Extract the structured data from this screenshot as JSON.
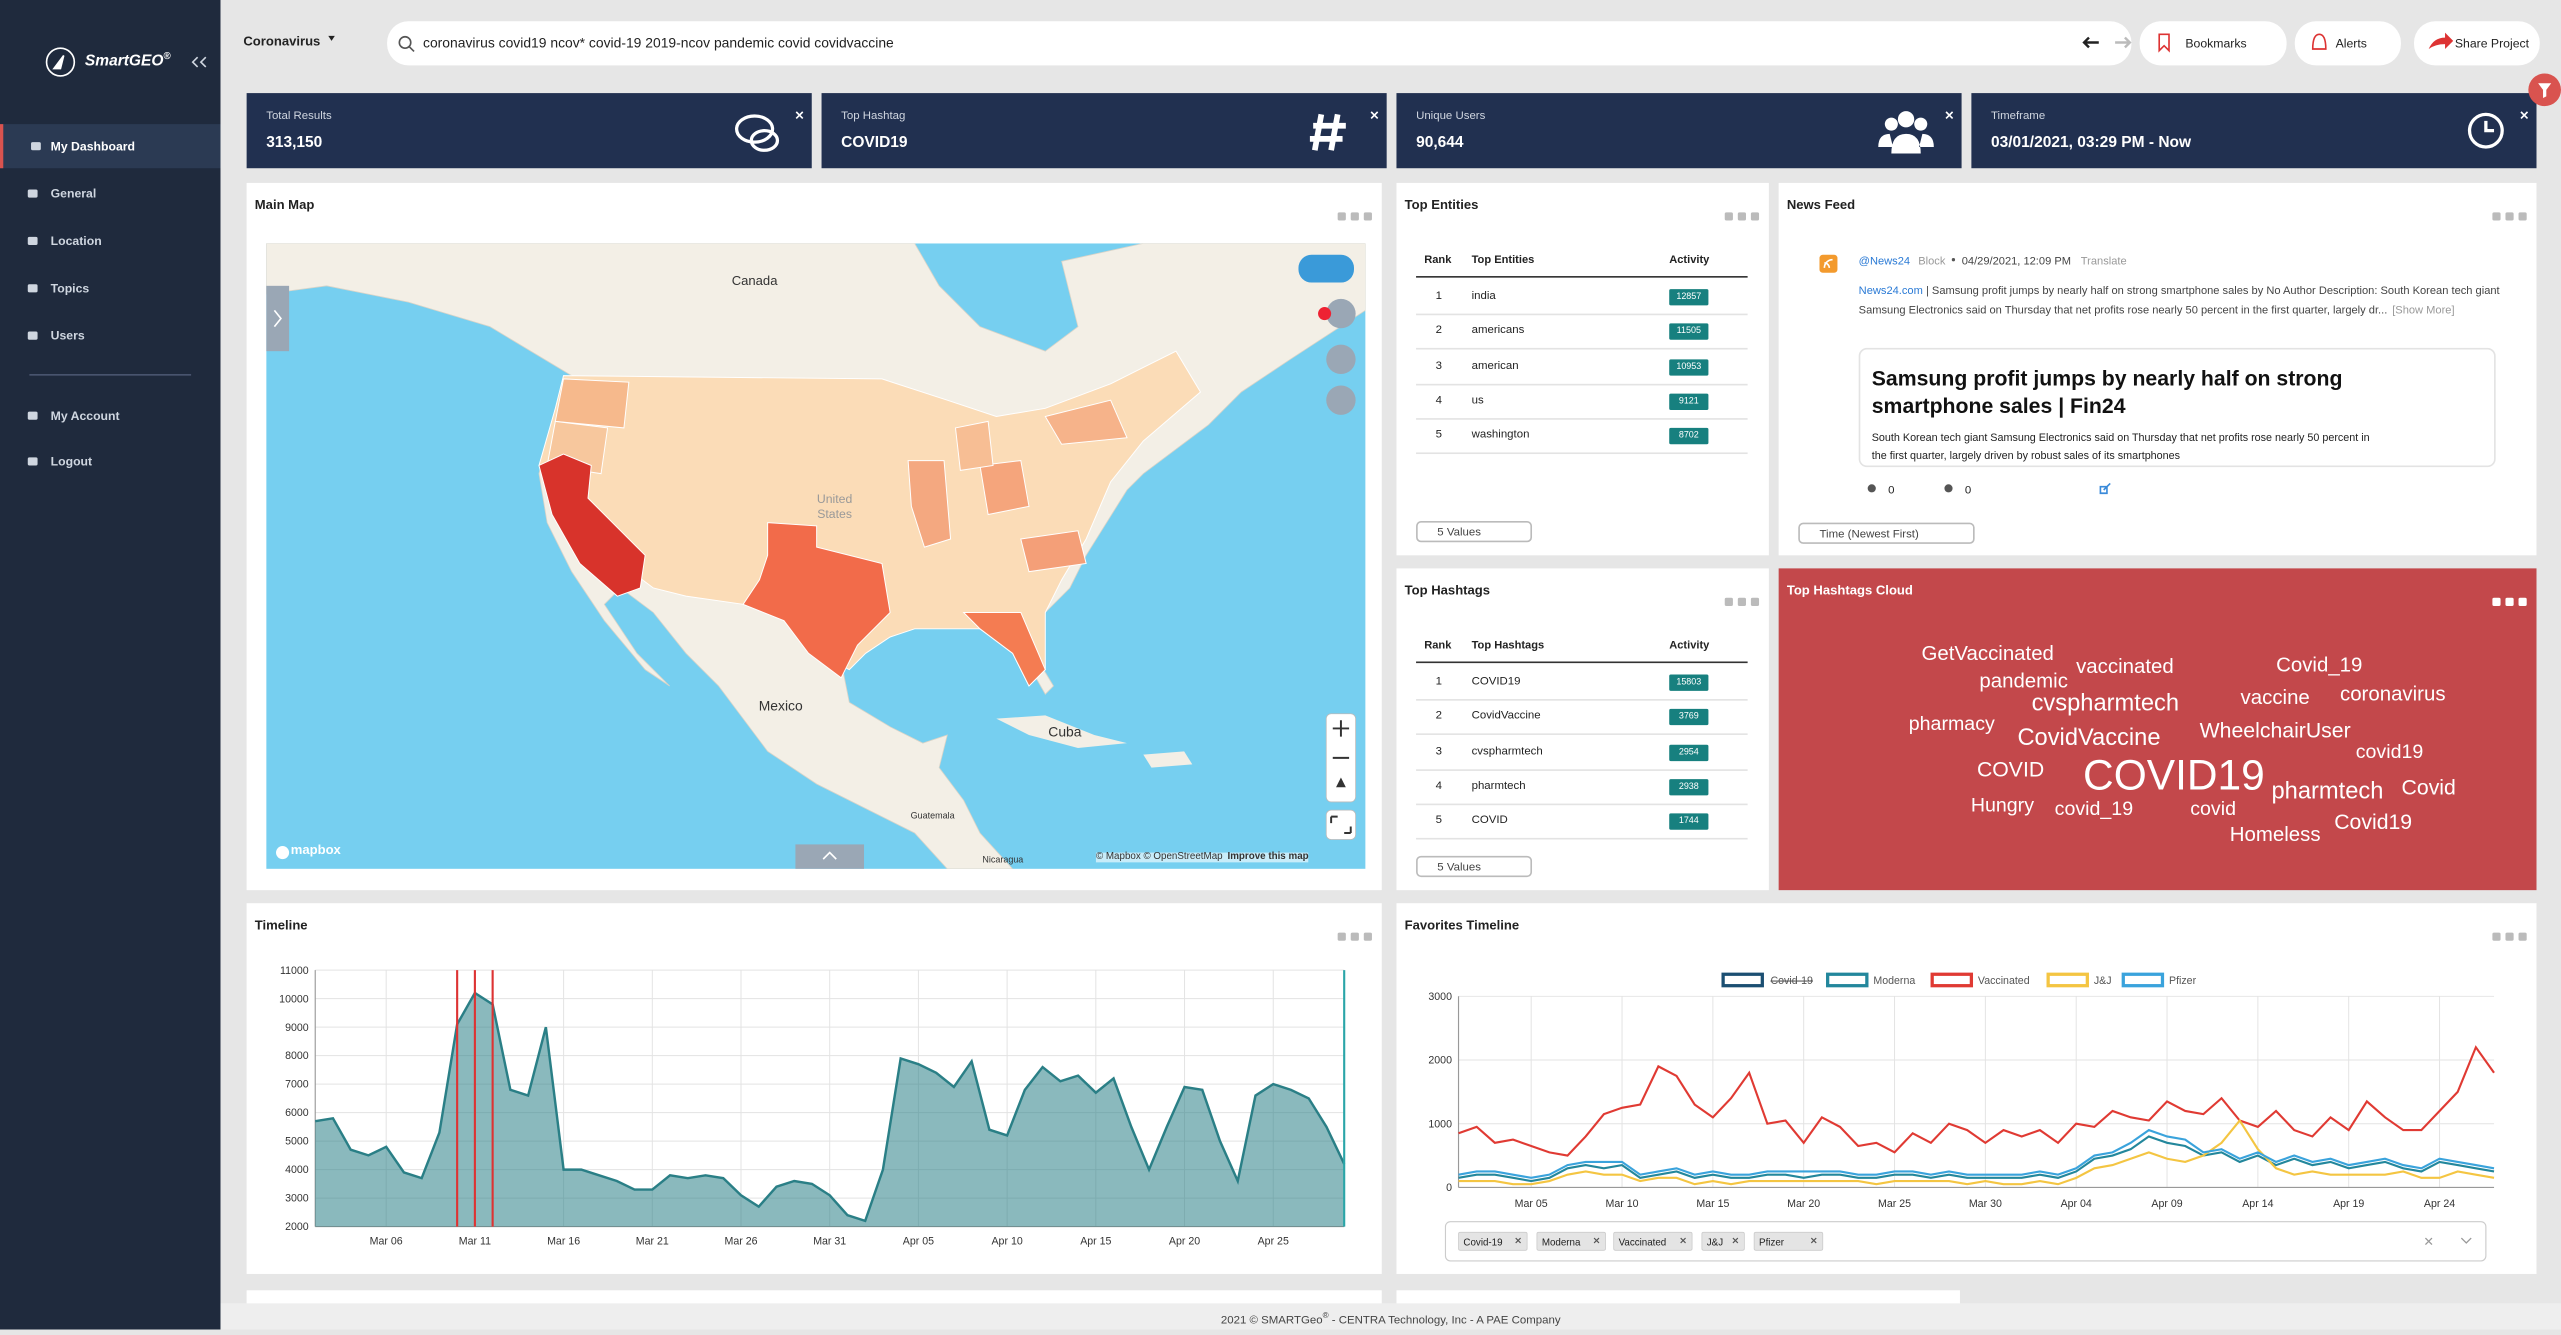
{
  "sidebar": {
    "brand": "SmartGEO",
    "brand_mark": "®",
    "menu": [
      "My Dashboard",
      "General",
      "Location",
      "Topics",
      "Users"
    ],
    "account_menu": [
      "My Account",
      "Logout"
    ]
  },
  "topbar": {
    "project": "Coronavirus",
    "search": "coronavirus covid19 ncov* covid-19 2019-ncov pandemic covid covidvaccine",
    "bookmarks": "Bookmarks",
    "alerts": "Alerts",
    "share": "Share Project"
  },
  "stats": [
    {
      "label": "Total Results",
      "value": "313,150"
    },
    {
      "label": "Top Hashtag",
      "value": "COVID19"
    },
    {
      "label": "Unique Users",
      "value": "90,644"
    },
    {
      "label": "Timeframe",
      "value": "03/01/2021, 03:29 PM - Now"
    }
  ],
  "map": {
    "title": "Main Map",
    "places": [
      "Canada",
      "United States",
      "Mexico",
      "Cuba",
      "Guatemala",
      "Nicaragua"
    ],
    "attribution": "© Mapbox © OpenStreetMap",
    "improve": "Improve this map",
    "logo": "mapbox"
  },
  "top_entities": {
    "title": "Top Entities",
    "columns": [
      "Rank",
      "Top Entities",
      "Activity"
    ],
    "rows": [
      [
        1,
        "india",
        12857
      ],
      [
        2,
        "americans",
        11505
      ],
      [
        3,
        "american",
        10953
      ],
      [
        4,
        "us",
        9121
      ],
      [
        5,
        "washington",
        8702
      ]
    ],
    "select": "5 Values"
  },
  "top_hashtags": {
    "title": "Top Hashtags",
    "columns": [
      "Rank",
      "Top Hashtags",
      "Activity"
    ],
    "rows": [
      [
        1,
        "COVID19",
        15803
      ],
      [
        2,
        "CovidVaccine",
        3769
      ],
      [
        3,
        "cvspharmtech",
        2954
      ],
      [
        4,
        "pharmtech",
        2938
      ],
      [
        5,
        "COVID",
        1744
      ]
    ],
    "select": "5 Values"
  },
  "news_feed": {
    "title": "News Feed",
    "source": "@News24",
    "block": "Block",
    "date": "04/29/2021, 12:09 PM",
    "translate": "Translate",
    "link": "News24.com",
    "summary": " | Samsung profit jumps by nearly half on strong smartphone sales by No Author Description: South Korean tech giant Samsung Electronics said on Thursday that net profits rose nearly 50 percent in the first quarter, largely dr...",
    "more": "[Show More]",
    "card_title": "Samsung profit jumps by nearly half on strong smartphone sales | Fin24",
    "card_text": "South Korean tech giant Samsung Electronics said on Thursday that net profits rose nearly 50 percent in the first quarter, largely driven by robust sales of its smartphones",
    "likes": 0,
    "users": 0,
    "sort": "Time (Newest First)"
  },
  "hashtag_cloud": {
    "title": "Top Hashtags Cloud",
    "words": [
      "GetVaccinated",
      "vaccinated",
      "Covid_19",
      "pandemic",
      "vaccine",
      "coronavirus",
      "cvspharmtech",
      "pharmacy",
      "WheelchairUser",
      "CovidVaccine",
      "covid19",
      "COVID",
      "COVID19",
      "pharmtech",
      "Covid",
      "Hungry",
      "covid_19",
      "covid",
      "Covid19",
      "Homeless"
    ]
  },
  "chart_data": [
    {
      "type": "area",
      "title": "Timeline",
      "color": "#2a7f86",
      "categories": [
        null,
        null,
        null,
        null,
        "Mar 06",
        null,
        null,
        null,
        null,
        "Mar 11",
        null,
        null,
        null,
        null,
        "Mar 16",
        null,
        null,
        null,
        null,
        "Mar 21",
        null,
        null,
        null,
        null,
        "Mar 26",
        null,
        null,
        null,
        null,
        "Mar 31",
        null,
        null,
        null,
        null,
        "Apr 05",
        null,
        null,
        null,
        null,
        "Apr 10",
        null,
        null,
        null,
        null,
        "Apr 15",
        null,
        null,
        null,
        null,
        "Apr 20",
        null,
        null,
        null,
        null,
        "Apr 25",
        null,
        null,
        null,
        null
      ],
      "values": [
        5700,
        5800,
        4700,
        4500,
        4800,
        3900,
        3700,
        5300,
        9100,
        10200,
        9800,
        6800,
        6600,
        9000,
        4000,
        4000,
        3800,
        3600,
        3300,
        3300,
        3800,
        3700,
        3800,
        3700,
        3100,
        2700,
        3400,
        3600,
        3500,
        3100,
        2400,
        2200,
        4000,
        7900,
        7700,
        7400,
        6900,
        7800,
        5400,
        5200,
        6800,
        7600,
        7100,
        7300,
        6700,
        7200,
        5500,
        4000,
        5500,
        6900,
        6800,
        5000,
        3600,
        6600,
        7000,
        6800,
        6500,
        5500,
        4200
      ],
      "ylim": [
        2000,
        11000
      ],
      "yticks": [
        2000,
        3000,
        4000,
        5000,
        6000,
        7000,
        8000,
        9000,
        10000,
        11000
      ],
      "grid": true
    },
    {
      "type": "line",
      "title": "Favorites Timeline",
      "legend": "top",
      "categories": [
        null,
        null,
        null,
        null,
        "Mar 05",
        null,
        null,
        null,
        null,
        "Mar 10",
        null,
        null,
        null,
        null,
        "Mar 15",
        null,
        null,
        null,
        null,
        "Mar 20",
        null,
        null,
        null,
        null,
        "Mar 25",
        null,
        null,
        null,
        null,
        "Mar 30",
        null,
        null,
        null,
        null,
        "Apr 04",
        null,
        null,
        null,
        null,
        "Apr 09",
        null,
        null,
        null,
        null,
        "Apr 14",
        null,
        null,
        null,
        null,
        "Apr 19",
        null,
        null,
        null,
        null,
        "Apr 24",
        null,
        null,
        null
      ],
      "series": [
        {
          "name": "Covid-19",
          "color": "#1b4f72",
          "hidden": true
        },
        {
          "name": "Moderna",
          "color": "#23879c",
          "values": [
            150,
            200,
            200,
            150,
            100,
            150,
            300,
            350,
            300,
            350,
            150,
            200,
            250,
            150,
            200,
            150,
            150,
            200,
            200,
            150,
            200,
            200,
            150,
            150,
            200,
            200,
            150,
            200,
            150,
            150,
            150,
            150,
            200,
            150,
            250,
            450,
            500,
            600,
            800,
            700,
            650,
            500,
            550,
            400,
            500,
            350,
            450,
            350,
            400,
            300,
            350,
            400,
            300,
            250,
            400,
            350,
            300,
            250
          ]
        },
        {
          "name": "Vaccinated",
          "color": "#e03a33",
          "values": [
            850,
            950,
            700,
            750,
            650,
            550,
            500,
            800,
            1150,
            1250,
            1300,
            1900,
            1750,
            1300,
            1100,
            1400,
            1800,
            1000,
            1050,
            700,
            1100,
            950,
            650,
            700,
            550,
            850,
            700,
            1000,
            900,
            700,
            900,
            800,
            900,
            700,
            1000,
            950,
            1200,
            1100,
            1050,
            1350,
            1200,
            1150,
            1400,
            1050,
            950,
            1200,
            900,
            800,
            1100,
            900,
            1350,
            1100,
            900,
            900,
            1200,
            1500,
            2200,
            1800
          ]
        },
        {
          "name": "J&J",
          "color": "#f4c542",
          "values": [
            100,
            100,
            100,
            50,
            50,
            100,
            200,
            250,
            200,
            200,
            100,
            150,
            150,
            50,
            100,
            50,
            100,
            100,
            100,
            100,
            100,
            100,
            100,
            50,
            100,
            100,
            100,
            100,
            50,
            100,
            50,
            50,
            100,
            50,
            150,
            300,
            350,
            450,
            550,
            450,
            400,
            500,
            700,
            1050,
            600,
            300,
            200,
            250,
            200,
            200,
            200,
            200,
            250,
            150,
            150,
            250,
            200,
            150
          ]
        },
        {
          "name": "Pfizer",
          "color": "#3aa3dc",
          "values": [
            200,
            250,
            250,
            200,
            150,
            200,
            350,
            400,
            400,
            400,
            200,
            250,
            300,
            200,
            250,
            200,
            200,
            250,
            250,
            250,
            250,
            250,
            200,
            200,
            250,
            250,
            200,
            250,
            200,
            200,
            200,
            200,
            250,
            200,
            300,
            500,
            550,
            700,
            900,
            800,
            750,
            550,
            600,
            450,
            550,
            400,
            500,
            400,
            450,
            350,
            400,
            450,
            350,
            300,
            450,
            400,
            350,
            300
          ]
        }
      ],
      "ylim": [
        0,
        3000
      ],
      "yticks": [
        0,
        1000,
        2000,
        3000
      ],
      "grid": true
    }
  ],
  "footer": {
    "text": "2021 © SMARTGeo",
    "mark": "®",
    "rest": " - CENTRA Technology, Inc - A PAE Company"
  }
}
